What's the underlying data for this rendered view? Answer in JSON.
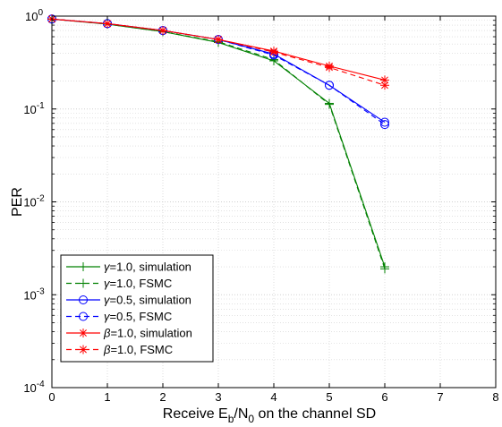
{
  "chart_data": {
    "type": "line",
    "title": "",
    "xlabel": "Receive E_b/N_0 on the channel SD",
    "ylabel": "PER",
    "xlabel_parts": {
      "pre": "Receive E",
      "sub1": "b",
      "mid": "/N",
      "sub2": "0",
      "post": " on the channel SD"
    },
    "xlim": [
      0,
      8
    ],
    "ylim": [
      0.0001,
      1
    ],
    "yscale": "log",
    "grid": true,
    "legend_position": "bottom-left",
    "x_ticks": [
      "0",
      "1",
      "2",
      "3",
      "4",
      "5",
      "6",
      "7",
      "8"
    ],
    "y_ticks": [
      {
        "base": "10",
        "exp": "0"
      },
      {
        "base": "10",
        "exp": "-1"
      },
      {
        "base": "10",
        "exp": "-2"
      },
      {
        "base": "10",
        "exp": "-3"
      },
      {
        "base": "10",
        "exp": "-4"
      }
    ],
    "series": [
      {
        "name": "γ=1.0, simulation",
        "sym": "γ",
        "rest": "=1.0, simulation",
        "color": "#008000",
        "dash": "solid",
        "marker": "plus",
        "x": [
          0,
          1,
          2,
          3,
          4,
          5,
          6
        ],
        "y": [
          0.93,
          0.82,
          0.68,
          0.52,
          0.33,
          0.115,
          0.002
        ]
      },
      {
        "name": "γ=1.0, FSMC",
        "sym": "γ",
        "rest": "=1.0, FSMC",
        "color": "#008000",
        "dash": "dashed",
        "marker": "plus",
        "x": [
          0,
          1,
          2,
          3,
          4,
          5,
          6
        ],
        "y": [
          0.93,
          0.82,
          0.68,
          0.53,
          0.34,
          0.112,
          0.0019
        ]
      },
      {
        "name": "γ=0.5, simulation",
        "sym": "γ",
        "rest": "=0.5, simulation",
        "color": "#0000ff",
        "dash": "solid",
        "marker": "circle",
        "x": [
          0,
          1,
          2,
          3,
          4,
          5,
          6
        ],
        "y": [
          0.93,
          0.83,
          0.7,
          0.56,
          0.39,
          0.18,
          0.072
        ]
      },
      {
        "name": "γ=0.5, FSMC",
        "sym": "γ",
        "rest": "=0.5, FSMC",
        "color": "#0000ff",
        "dash": "dashed",
        "marker": "circle",
        "x": [
          0,
          1,
          2,
          3,
          4,
          5,
          6
        ],
        "y": [
          0.93,
          0.83,
          0.7,
          0.56,
          0.38,
          0.18,
          0.068
        ]
      },
      {
        "name": "β=1.0, simulation",
        "sym": "β",
        "rest": "=1.0, simulation",
        "color": "#ff0000",
        "dash": "solid",
        "marker": "asterisk",
        "x": [
          0,
          1,
          2,
          3,
          4,
          5,
          6
        ],
        "y": [
          0.93,
          0.83,
          0.7,
          0.56,
          0.42,
          0.29,
          0.205
        ]
      },
      {
        "name": "β=1.0, FSMC",
        "sym": "β",
        "rest": "=1.0, FSMC",
        "color": "#ff0000",
        "dash": "dashed",
        "marker": "asterisk",
        "x": [
          0,
          1,
          2,
          3,
          4,
          5,
          6
        ],
        "y": [
          0.93,
          0.83,
          0.7,
          0.56,
          0.41,
          0.28,
          0.18
        ]
      }
    ]
  }
}
